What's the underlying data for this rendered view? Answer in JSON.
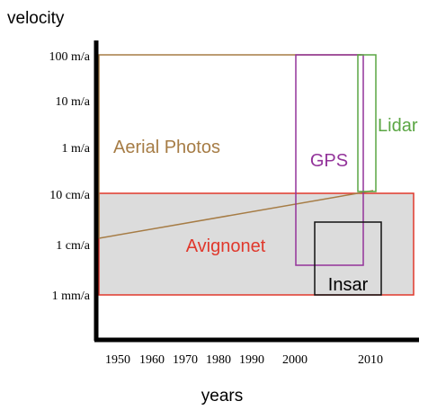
{
  "axes": {
    "y_label": "velocity",
    "x_label": "years",
    "y_ticks": [
      "100 m/a",
      "10 m/a",
      "1 m/a",
      "10 cm/a",
      "1 cm/a",
      "1 mm/a"
    ],
    "x_ticks": [
      "1950",
      "1960",
      "1970",
      "1980",
      "1990",
      "2000",
      "2010"
    ]
  },
  "regions": [
    {
      "label": "Aerial Photos"
    },
    {
      "label": "Avignonet"
    },
    {
      "label": "GPS"
    },
    {
      "label": "Lidar"
    },
    {
      "label": "Insar"
    }
  ]
}
